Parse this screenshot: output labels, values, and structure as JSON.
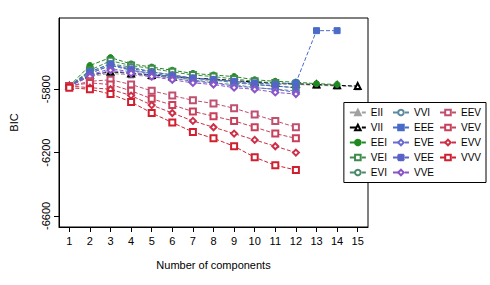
{
  "chart_data": {
    "type": "line",
    "x_label": "Number of components",
    "y_label": "BIC",
    "x": [
      1,
      2,
      3,
      4,
      5,
      6,
      7,
      8,
      9,
      10,
      11,
      12,
      13,
      14,
      15
    ],
    "xlim": [
      0.5,
      15.5
    ],
    "xticks": [
      1,
      2,
      3,
      4,
      5,
      6,
      7,
      8,
      9,
      10,
      11,
      12,
      13,
      14,
      15
    ],
    "ylim": [
      -6670,
      -5350
    ],
    "yticks": [
      -5800,
      -6200,
      -6600
    ],
    "grid": false,
    "legend": "right",
    "line_style": "dashed",
    "series": [
      {
        "name": "EII",
        "color": "#a0a0a0",
        "marker": "filled_triangle",
        "values": [
          -5780,
          -5720,
          -5700,
          -5710,
          -5720,
          -5730,
          -5740,
          -5745,
          -5750,
          -5760,
          -5765,
          -5770,
          -5775,
          -5780,
          -5785
        ]
      },
      {
        "name": "VII",
        "color": "#000000",
        "marker": "open_triangle",
        "values": [
          -5780,
          -5710,
          -5690,
          -5700,
          -5710,
          -5720,
          -5730,
          -5735,
          -5745,
          -5755,
          -5760,
          -5765,
          -5770,
          -5775,
          -5780
        ]
      },
      {
        "name": "EEI",
        "color": "#1f8a1f",
        "marker": "filled_circle",
        "values": [
          -5780,
          -5650,
          -5600,
          -5640,
          -5660,
          -5680,
          -5700,
          -5710,
          -5720,
          -5740,
          -5750,
          -5755,
          -5765,
          -5770,
          null
        ]
      },
      {
        "name": "VEI",
        "color": "#3e8b4c",
        "marker": "boxed_x",
        "values": [
          -5780,
          -5680,
          -5620,
          -5650,
          -5670,
          -5690,
          -5710,
          -5720,
          -5735,
          -5750,
          -5760,
          -5770,
          null,
          null,
          null
        ]
      },
      {
        "name": "EVI",
        "color": "#4a8a6a",
        "marker": "circled_plus",
        "values": [
          -5780,
          -5690,
          -5640,
          -5660,
          -5690,
          -5710,
          -5730,
          -5740,
          -5760,
          -5770,
          -5780,
          -5790,
          null,
          null,
          null
        ]
      },
      {
        "name": "VVI",
        "color": "#5a8aa0",
        "marker": "open_circle",
        "values": [
          -5780,
          -5700,
          -5650,
          -5680,
          -5700,
          -5720,
          -5740,
          -5760,
          -5770,
          -5790,
          -5800,
          -5810,
          null,
          null,
          null
        ]
      },
      {
        "name": "EEE",
        "color": "#4a6bc8",
        "marker": "filled_square",
        "values": [
          -5780,
          -5690,
          -5640,
          -5680,
          -5700,
          -5720,
          -5730,
          -5740,
          -5750,
          -5760,
          -5770,
          -5760,
          -5430,
          -5430,
          null
        ]
      },
      {
        "name": "EVE",
        "color": "#6a6cd0",
        "marker": "open_diamond",
        "values": [
          -5780,
          -5710,
          -5670,
          -5690,
          -5710,
          -5730,
          -5750,
          -5760,
          -5780,
          -5790,
          -5800,
          -5820,
          null,
          null,
          null
        ]
      },
      {
        "name": "VEE",
        "color": "#5a62c8",
        "marker": "asterisk",
        "values": [
          -5780,
          -5700,
          -5650,
          -5670,
          -5690,
          -5710,
          -5730,
          -5740,
          -5750,
          -5770,
          -5780,
          -5790,
          null,
          null,
          null
        ]
      },
      {
        "name": "VVE",
        "color": "#8a55c8",
        "marker": "diamond_plus",
        "values": [
          -5780,
          -5720,
          -5680,
          -5700,
          -5720,
          -5740,
          -5760,
          -5770,
          -5790,
          -5800,
          -5820,
          -5830,
          null,
          null,
          null
        ]
      },
      {
        "name": "EEV",
        "color": "#c05070",
        "marker": "boxed_plus",
        "values": [
          -5780,
          -5750,
          -5740,
          -5770,
          -5810,
          -5840,
          -5870,
          -5890,
          -5920,
          -5960,
          -6000,
          -6040,
          null,
          null,
          null
        ]
      },
      {
        "name": "VEV",
        "color": "#c8405a",
        "marker": "boxed_x",
        "values": [
          -5780,
          -5760,
          -5770,
          -5810,
          -5860,
          -5900,
          -5940,
          -5970,
          -6000,
          -6040,
          -6080,
          -6110,
          null,
          null,
          null
        ]
      },
      {
        "name": "EVV",
        "color": "#cc3048",
        "marker": "diamond_x",
        "values": [
          -5780,
          -5790,
          -5800,
          -5840,
          -5900,
          -5950,
          -6000,
          -6040,
          -6080,
          -6120,
          -6160,
          -6200,
          null,
          null,
          null
        ]
      },
      {
        "name": "VVV",
        "color": "#d02030",
        "marker": "open_square",
        "values": [
          -5790,
          -5800,
          -5830,
          -5880,
          -5950,
          -6010,
          -6070,
          -6110,
          -6160,
          -6230,
          -6280,
          -6310,
          null,
          null,
          null
        ]
      }
    ]
  }
}
